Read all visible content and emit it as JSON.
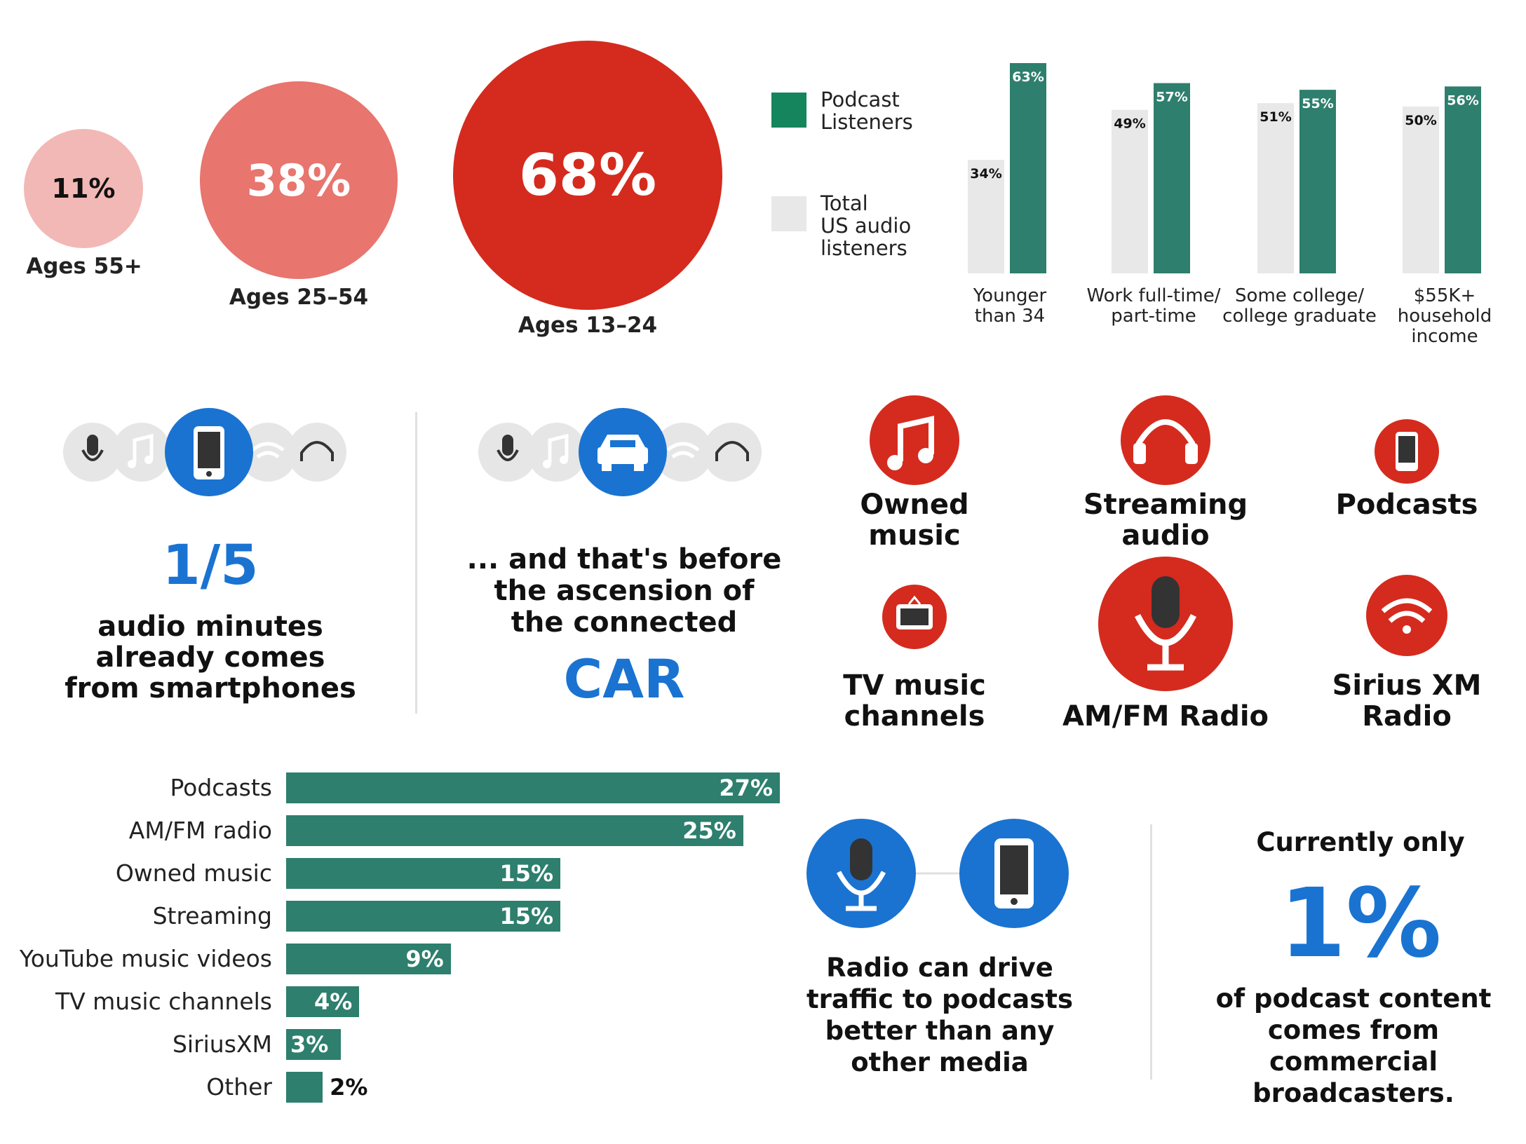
{
  "colors": {
    "podcast_green": "#2e7f6d",
    "legend_green": "#14855d",
    "total_gray": "#e8e8e8",
    "red": "#d42b1e",
    "mid_red": "#e8756e",
    "light_red": "#f2b8b5",
    "blue": "#1a73d1"
  },
  "age_bubbles": [
    {
      "value": "11%",
      "label": "Ages 55+"
    },
    {
      "value": "38%",
      "label": "Ages 25–54"
    },
    {
      "value": "68%",
      "label": "Ages 13–24"
    }
  ],
  "legend": {
    "podcast": "Podcast Listeners",
    "podcast_line1": "Podcast",
    "podcast_line2": "Listeners",
    "total_line1": "Total",
    "total_line2": "US audio",
    "total_line3": "listeners"
  },
  "chart_data": [
    {
      "type": "bar",
      "categories": [
        "Younger than 34",
        "Work full-time/ part-time",
        "Some college/ college graduate",
        "$55K+ household income"
      ],
      "category_lines": [
        [
          "Younger",
          "than 34"
        ],
        [
          "Work full-time/",
          "part-time"
        ],
        [
          "Some college/",
          "college graduate"
        ],
        [
          "$55K+",
          "household",
          "income"
        ]
      ],
      "series": [
        {
          "name": "Total US audio listeners",
          "values": [
            34,
            49,
            51,
            50
          ],
          "color": "#e8e8e8"
        },
        {
          "name": "Podcast Listeners",
          "values": [
            63,
            57,
            55,
            56
          ],
          "color": "#2e7f6d"
        }
      ],
      "value_labels": [
        [
          "34%",
          "49%",
          "51%",
          "50%"
        ],
        [
          "63%",
          "57%",
          "55%",
          "56%"
        ]
      ],
      "ylim": [
        0,
        63
      ],
      "grid": false,
      "legend_position": "left"
    },
    {
      "type": "bar",
      "orientation": "horizontal",
      "categories": [
        "Podcasts",
        "AM/FM radio",
        "Owned music",
        "Streaming",
        "YouTube music videos",
        "TV music channels",
        "SiriusXM",
        "Other"
      ],
      "values": [
        27,
        25,
        15,
        15,
        9,
        4,
        3,
        2
      ],
      "value_labels": [
        "27%",
        "25%",
        "15%",
        "15%",
        "9%",
        "4%",
        "3%",
        "2%"
      ],
      "xlim": [
        0,
        27
      ],
      "grid": false
    }
  ],
  "smartphone_panel": {
    "stat": "1/5",
    "line1": "audio minutes",
    "line2": "already comes",
    "line3": "from smartphones"
  },
  "car_panel": {
    "line1": "... and that's before",
    "line2": "the ascension of",
    "line3": "the connected",
    "stat": "CAR"
  },
  "media_icons": [
    {
      "icon": "music-note-icon",
      "line1": "Owned",
      "line2": "music"
    },
    {
      "icon": "headphones-icon",
      "line1": "Streaming",
      "line2": "audio"
    },
    {
      "icon": "smartphone-icon",
      "line1": "Podcasts",
      "line2": ""
    },
    {
      "icon": "tv-icon",
      "line1": "TV music",
      "line2": "channels"
    },
    {
      "icon": "microphone-icon",
      "line1": "AM/FM Radio",
      "line2": ""
    },
    {
      "icon": "satellite-signal-icon",
      "line1": "Sirius XM",
      "line2": "Radio"
    }
  ],
  "radio_panel": {
    "line1": "Radio can drive",
    "line2": "traffic to podcasts",
    "line3": "better than any",
    "line4": "other media"
  },
  "broadcaster_panel": {
    "intro": "Currently only",
    "stat": "1%",
    "line1": "of podcast content",
    "line2": "comes from commercial",
    "line3": "broadcasters."
  }
}
